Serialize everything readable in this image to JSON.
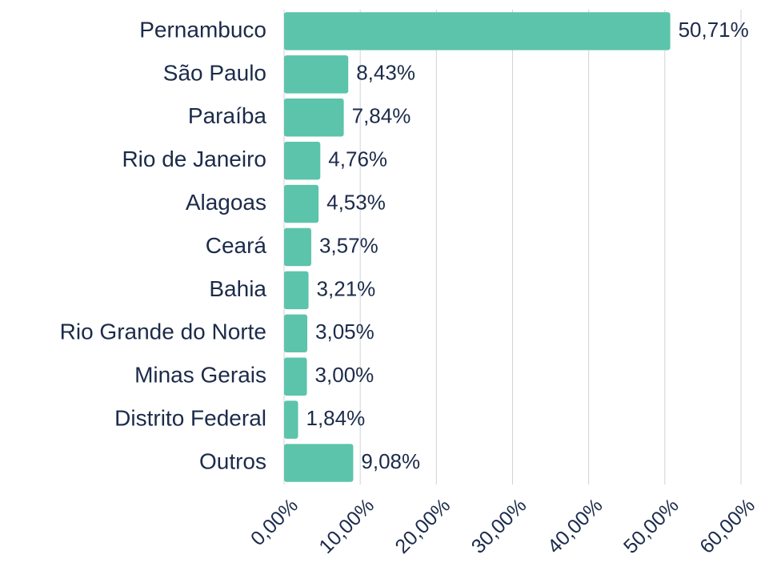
{
  "chart_data": {
    "type": "bar",
    "orientation": "horizontal",
    "categories": [
      "Pernambuco",
      "São Paulo",
      "Paraíba",
      "Rio de Janeiro",
      "Alagoas",
      "Ceará",
      "Bahia",
      "Rio Grande do Norte",
      "Minas Gerais",
      "Distrito Federal",
      "Outros"
    ],
    "values": [
      50.71,
      8.43,
      7.84,
      4.76,
      4.53,
      3.57,
      3.21,
      3.05,
      3.0,
      1.84,
      9.08
    ],
    "value_labels": [
      "50,71%",
      "8,43%",
      "7,84%",
      "4,76%",
      "4,53%",
      "3,57%",
      "3,21%",
      "3,05%",
      "3,00%",
      "1,84%",
      "9,08%"
    ],
    "color": "#5cc4ab",
    "xlim": [
      0,
      60
    ],
    "xticks": [
      {
        "value": 0,
        "label": "0,00%"
      },
      {
        "value": 10,
        "label": "10,00%"
      },
      {
        "value": 20,
        "label": "20,00%"
      },
      {
        "value": 30,
        "label": "30,00%"
      },
      {
        "value": 40,
        "label": "40,00%"
      },
      {
        "value": 50,
        "label": "50,00%"
      },
      {
        "value": 60,
        "label": "60,00%"
      }
    ],
    "grid": true
  }
}
